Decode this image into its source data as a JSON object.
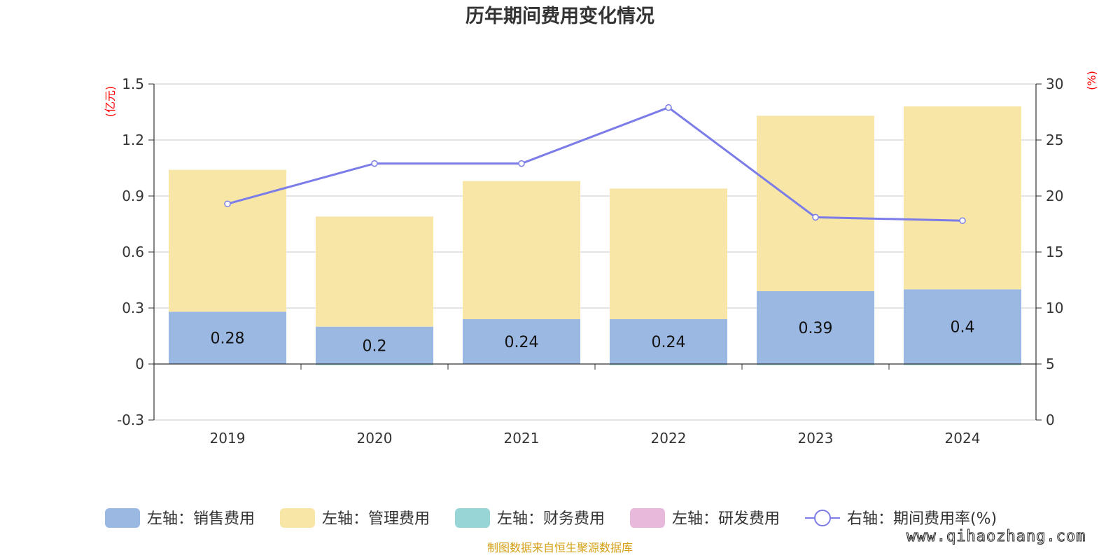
{
  "chart_data": {
    "type": "bar",
    "title": "历年期间费用变化情况",
    "categories": [
      "2019",
      "2020",
      "2021",
      "2022",
      "2023",
      "2024"
    ],
    "left_axis": {
      "unit": "(亿元)",
      "ticks": [
        "1.5",
        "1.2",
        "0.9",
        "0.6",
        "0.3",
        "0",
        "-0.3"
      ],
      "ylim": [
        -0.3,
        1.5
      ]
    },
    "right_axis": {
      "unit": "(%)",
      "ticks": [
        "30",
        "25",
        "20",
        "15",
        "10",
        "5",
        "0"
      ],
      "ylim": [
        0,
        30
      ]
    },
    "grid": true,
    "stacked": true,
    "series": [
      {
        "name": "左轴：销售费用",
        "axis": "left",
        "type": "bar",
        "color": "#9bb8e2",
        "values": [
          0.28,
          0.2,
          0.24,
          0.24,
          0.39,
          0.4
        ],
        "labels": [
          "0.28",
          "0.2",
          "0.24",
          "0.24",
          "0.39",
          "0.4"
        ]
      },
      {
        "name": "左轴：管理费用",
        "axis": "left",
        "type": "bar",
        "color": "#f7e6a6",
        "values": [
          0.76,
          0.59,
          0.74,
          0.7,
          0.94,
          0.98
        ]
      },
      {
        "name": "左轴：财务费用",
        "axis": "left",
        "type": "bar",
        "color": "#98d5d6",
        "values": [
          0,
          -0.005,
          0,
          -0.005,
          -0.005,
          -0.005
        ]
      },
      {
        "name": "左轴：研发费用",
        "axis": "left",
        "type": "bar",
        "color": "#e8b9db",
        "values": [
          0,
          0,
          0,
          0,
          0,
          0
        ]
      },
      {
        "name": "右轴：期间费用率(%)",
        "axis": "right",
        "type": "line",
        "color": "#7b7ce8",
        "values": [
          19.3,
          22.9,
          22.9,
          27.9,
          18.1,
          17.8
        ]
      }
    ],
    "legend_position": "bottom"
  },
  "footer": {
    "source": "制图数据来自恒生聚源数据库",
    "color": "#d4a017"
  },
  "watermark": "www.qihaozhang.com"
}
